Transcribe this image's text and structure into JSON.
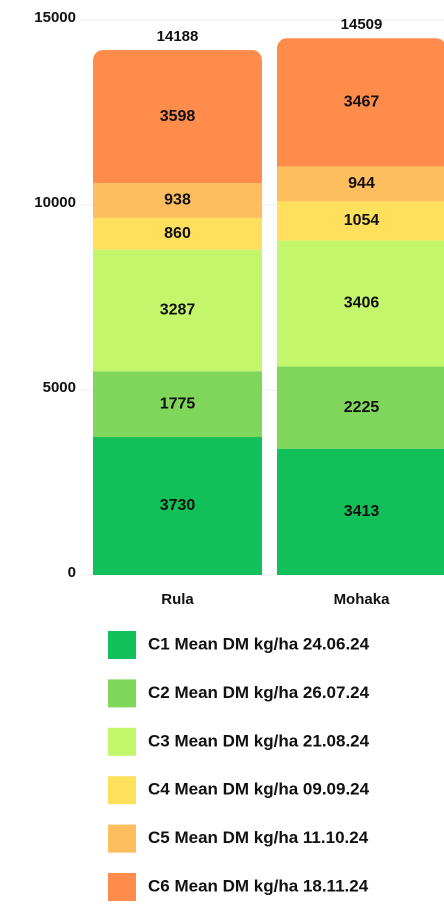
{
  "chart_data": {
    "type": "stacked_bar",
    "categories": [
      "Rula",
      "Mohaka"
    ],
    "series": [
      {
        "name": "C1 Mean DM kg/ha 24.06.24",
        "color": "#12c05a",
        "values": [
          3730,
          3413
        ]
      },
      {
        "name": "C2 Mean DM kg/ha 26.07.24",
        "color": "#7fd65b",
        "values": [
          1775,
          2225
        ]
      },
      {
        "name": "C3 Mean DM kg/ha 21.08.24",
        "color": "#c4f66c",
        "values": [
          3287,
          3406
        ]
      },
      {
        "name": "C4 Mean DM kg/ha 09.09.24",
        "color": "#ffe05c",
        "values": [
          860,
          1054
        ]
      },
      {
        "name": "C5 Mean DM kg/ha 11.10.24",
        "color": "#ffbe5e",
        "values": [
          938,
          944
        ]
      },
      {
        "name": "C6 Mean DM kg/ha 18.11.24",
        "color": "#ff8c4b",
        "values": [
          3598,
          3467
        ]
      }
    ],
    "totals": [
      14188,
      14509
    ],
    "ylim": [
      0,
      15000
    ],
    "yticks": [
      0,
      5000,
      10000,
      15000
    ],
    "grid": true
  }
}
